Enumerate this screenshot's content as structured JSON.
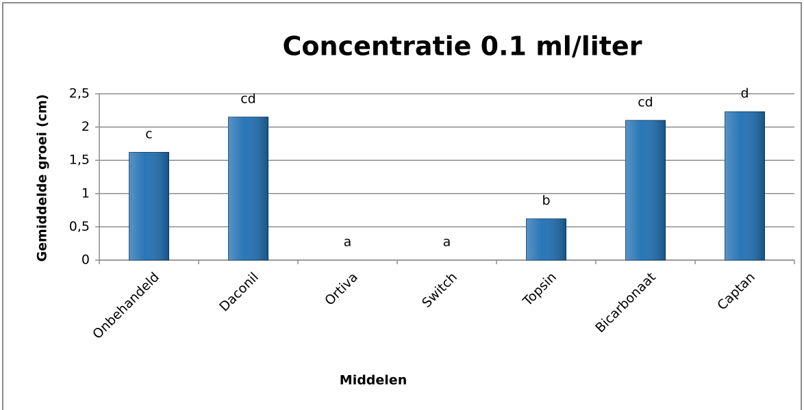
{
  "chart_data": {
    "type": "bar",
    "title": "Concentratie 0.1 ml/liter",
    "x_label": "Middelen",
    "y_label": "Gemiddelde groei (cm)",
    "categories": [
      "Onbehandeld",
      "Daconil",
      "Ortiva",
      "Switch",
      "Topsin",
      "Bicarbonaat",
      "Captan"
    ],
    "values": [
      1.62,
      2.15,
      0,
      0,
      0.62,
      2.1,
      2.23
    ],
    "annotations": [
      "c",
      "cd",
      "a",
      "a",
      "b",
      "cd",
      "d"
    ],
    "color": "#1f6fb2",
    "ylim": [
      0,
      2.5
    ],
    "yticks": [
      0,
      {
        "value": 0.5,
        "label": "0,5"
      },
      1,
      {
        "value": 1.5,
        "label": "1,5"
      },
      2,
      {
        "value": 2.5,
        "label": "2,5"
      }
    ],
    "grid": true
  }
}
